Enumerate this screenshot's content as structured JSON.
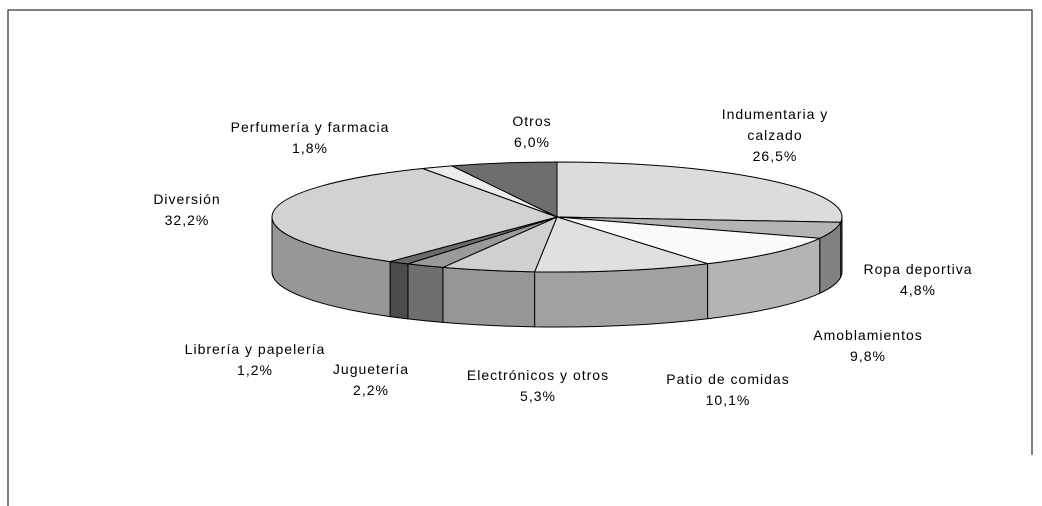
{
  "chart_data": {
    "type": "pie3d",
    "categories": [
      "Indumentaria y calzado",
      "Ropa deportiva",
      "Amoblamientos",
      "Patio de comidas",
      "Electrónicos y otros",
      "Juguetería",
      "Librería y papelería",
      "Diversión",
      "Perfumería y farmacia",
      "Otros"
    ],
    "values": [
      26.5,
      4.8,
      9.8,
      10.1,
      5.3,
      2.2,
      1.2,
      32.2,
      1.8,
      6.0
    ],
    "value_labels": [
      "26,5%",
      "4,8%",
      "9,8%",
      "10,1%",
      "5,3%",
      "2,2%",
      "1,2%",
      "32,2%",
      "1,8%",
      "6,0%"
    ],
    "colors": [
      "#dcdcdc",
      "#b4b4b4",
      "#fafafa",
      "#e0e0e0",
      "#d0d0d0",
      "#9a9a9a",
      "#6a6a6a",
      "#d2d2d2",
      "#ececec",
      "#6e6e6e"
    ]
  }
}
